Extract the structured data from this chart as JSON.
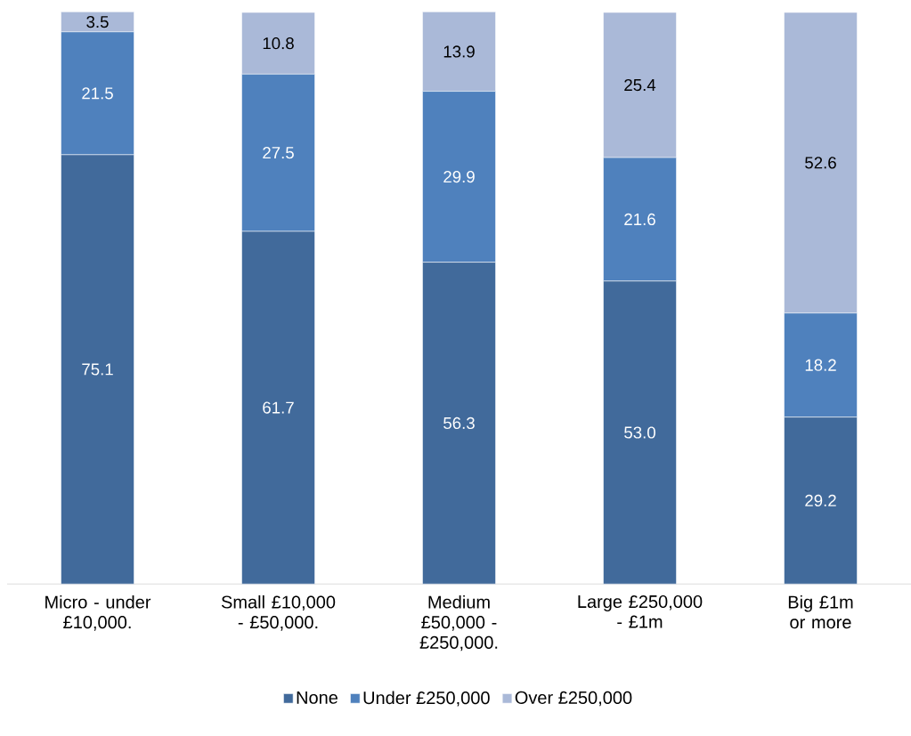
{
  "chart_data": {
    "type": "bar",
    "stacked": true,
    "legend": "bottom",
    "categories": [
      "Micro - under £10,000.",
      "Small £10,000 - £50,000.",
      "Medium £50,000 - £250,000.",
      "Large £250,000 - £1m",
      "Big £1m or more"
    ],
    "series": [
      {
        "name": "None",
        "color": "#416a9b",
        "values": [
          75.1,
          61.7,
          56.3,
          53.0,
          29.2
        ],
        "value_labels": [
          "75.1",
          "61.7",
          "56.3",
          "53.0",
          "29.2"
        ]
      },
      {
        "name": "Under £250,000",
        "color": "#4f81bd",
        "values": [
          21.5,
          27.5,
          29.9,
          21.6,
          18.2
        ],
        "value_labels": [
          "21.5",
          "27.5",
          "29.9",
          "21.6",
          "18.2"
        ]
      },
      {
        "name": "Over £250,000",
        "color": "#aab9d8",
        "values": [
          3.5,
          10.8,
          13.9,
          25.4,
          52.6
        ],
        "value_labels": [
          "3.5",
          "10.8",
          "13.9",
          "25.4",
          "52.6"
        ]
      }
    ]
  }
}
